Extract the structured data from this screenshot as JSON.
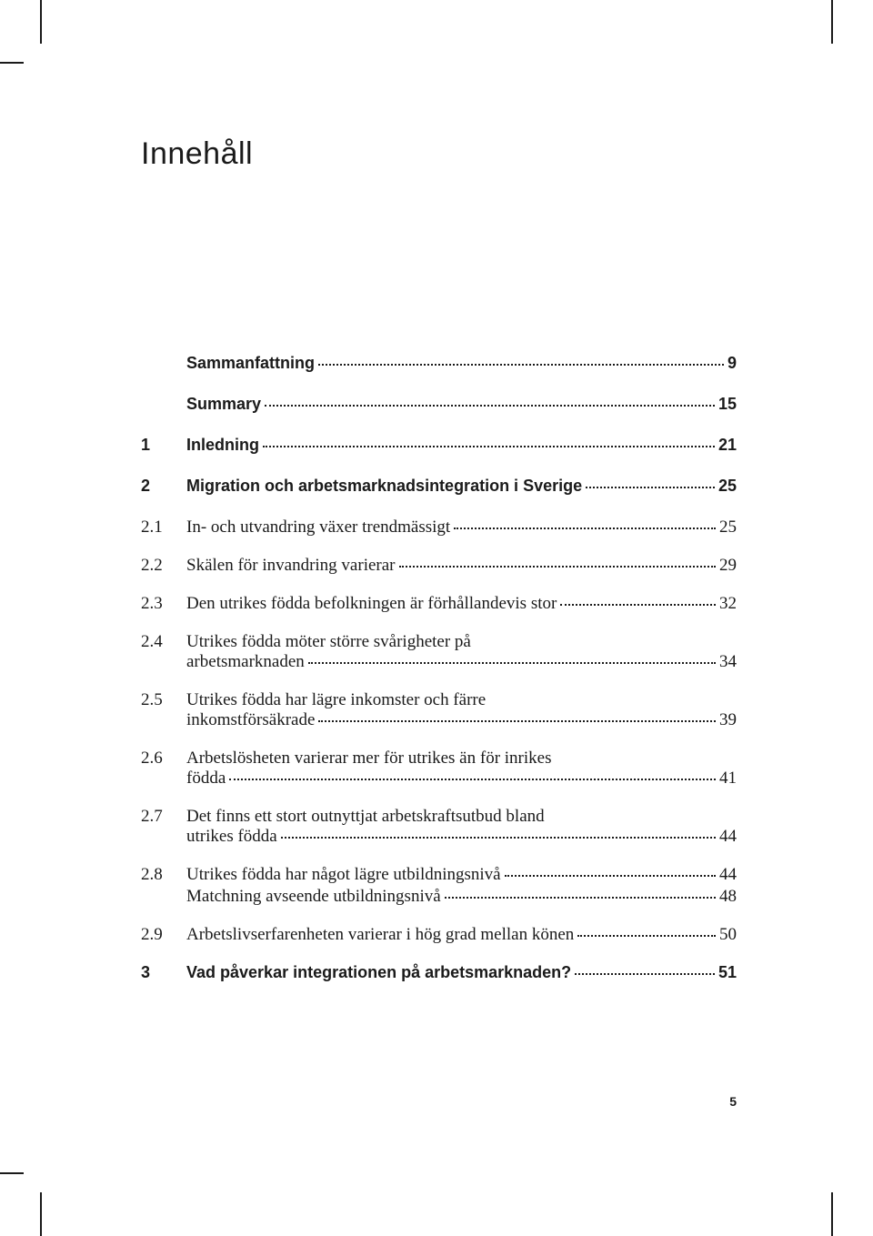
{
  "title": "Innehåll",
  "page_number": "5",
  "toc": [
    {
      "num": "",
      "text": "Sammanfattning",
      "page": "9",
      "bold": true,
      "top": true
    },
    {
      "num": "",
      "text": "Summary",
      "page": "15",
      "bold": true,
      "top": true
    },
    {
      "num": "1",
      "text": "Inledning",
      "page": "21",
      "bold": true,
      "top": true
    },
    {
      "num": "2",
      "text": "Migration och arbetsmarknadsintegration i Sverige",
      "page": "25",
      "bold": true,
      "top": true
    },
    {
      "num": "2.1",
      "text": "In- och utvandring växer trendmässigt",
      "page": "25",
      "bold": false
    },
    {
      "num": "2.2",
      "text": "Skälen för invandring varierar",
      "page": "29",
      "bold": false
    },
    {
      "num": "2.3",
      "text": "Den utrikes födda befolkningen är förhållandevis stor",
      "page": "32",
      "bold": false
    },
    {
      "num": "2.4",
      "line1": "Utrikes födda möter större svårigheter på",
      "line2": "arbetsmarknaden",
      "page": "34",
      "bold": false,
      "wrapped": true
    },
    {
      "num": "2.5",
      "line1": "Utrikes födda har lägre inkomster och färre",
      "line2": "inkomstförsäkrade",
      "page": "39",
      "bold": false,
      "wrapped": true
    },
    {
      "num": "2.6",
      "line1": "Arbetslösheten varierar mer för utrikes än för inrikes",
      "line2": "födda",
      "page": "41",
      "bold": false,
      "wrapped": true
    },
    {
      "num": "2.7",
      "line1": "Det finns ett stort outnyttjat arbetskraftsutbud bland",
      "line2": "utrikes födda",
      "page": "44",
      "bold": false,
      "wrapped": true
    },
    {
      "num": "2.8",
      "text": "Utrikes födda har något lägre utbildningsnivå",
      "page": "44",
      "bold": false,
      "has_sub": true,
      "sub_text": "Matchning avseende utbildningsnivå",
      "sub_page": "48"
    },
    {
      "num": "2.9",
      "text": "Arbetslivserfarenheten varierar i hög grad mellan könen",
      "page": "50",
      "bold": false
    },
    {
      "num": "3",
      "text": "Vad påverkar integrationen på arbetsmarknaden?",
      "page": "51",
      "bold": true,
      "top": true
    }
  ],
  "colors": {
    "text": "#1a1a1a",
    "background": "#ffffff"
  },
  "fonts": {
    "title_family": "Arial",
    "title_size": 34,
    "bold_family": "Arial",
    "bold_size": 18,
    "body_family": "Georgia",
    "body_size": 19,
    "page_num_size": 14
  }
}
